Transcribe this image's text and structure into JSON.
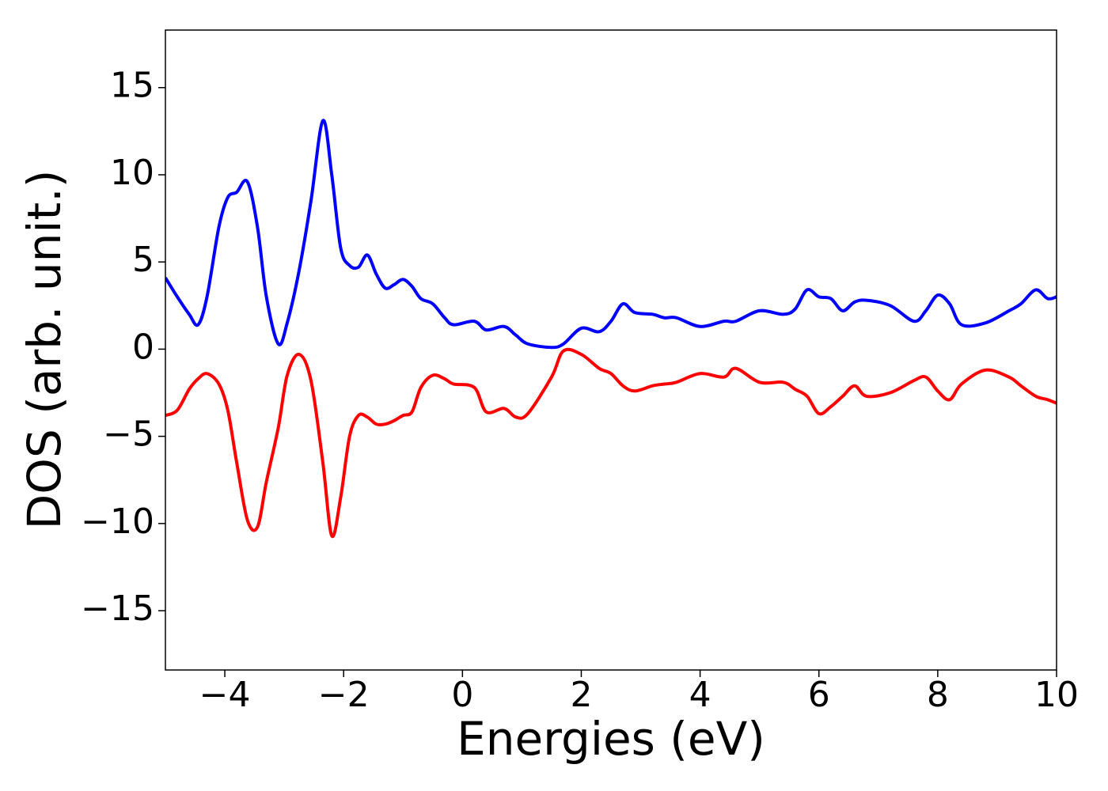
{
  "chart_data": {
    "type": "line",
    "xlabel": "Energies (eV)",
    "ylabel": "DOS (arb. unit.)",
    "x": [
      -5,
      -4.8,
      -4.6,
      -4.45,
      -4.3,
      -4.1,
      -3.95,
      -3.8,
      -3.62,
      -3.45,
      -3.3,
      -3.1,
      -2.95,
      -2.75,
      -2.55,
      -2.35,
      -2.2,
      -2.05,
      -1.9,
      -1.75,
      -1.6,
      -1.45,
      -1.3,
      -1.15,
      -1.0,
      -0.85,
      -0.7,
      -0.5,
      -0.3,
      -0.15,
      0.2,
      0.4,
      0.7,
      0.9,
      1.1,
      1.5,
      1.7,
      2.0,
      2.3,
      2.5,
      2.7,
      2.9,
      3.2,
      3.4,
      3.6,
      4.0,
      4.4,
      4.6,
      5.0,
      5.4,
      5.6,
      5.8,
      6.0,
      6.2,
      6.4,
      6.6,
      6.8,
      7.2,
      7.6,
      7.8,
      8.0,
      8.2,
      8.4,
      8.8,
      9.2,
      9.4,
      9.65,
      9.85,
      10
    ],
    "series": [
      {
        "color": "#0000ff",
        "values": [
          4.1,
          3.0,
          2.0,
          1.4,
          3.0,
          7.0,
          8.7,
          9.0,
          9.6,
          7.0,
          3.0,
          0.3,
          1.5,
          4.5,
          8.5,
          13.1,
          10.0,
          5.8,
          4.8,
          4.7,
          5.4,
          4.3,
          3.5,
          3.7,
          4.0,
          3.6,
          2.9,
          2.6,
          1.8,
          1.4,
          1.6,
          1.1,
          1.3,
          0.8,
          0.3,
          0.1,
          0.3,
          1.2,
          1.0,
          1.6,
          2.6,
          2.1,
          2.0,
          1.8,
          1.8,
          1.3,
          1.6,
          1.6,
          2.2,
          2.0,
          2.3,
          3.4,
          3.0,
          2.9,
          2.2,
          2.7,
          2.8,
          2.5,
          1.6,
          2.2,
          3.1,
          2.6,
          1.4,
          1.5,
          2.2,
          2.6,
          3.4,
          2.9,
          3.0
        ]
      },
      {
        "color": "#ff0000",
        "values": [
          -3.8,
          -3.5,
          -2.3,
          -1.7,
          -1.4,
          -2.0,
          -3.5,
          -6.5,
          -9.8,
          -10.2,
          -7.6,
          -4.5,
          -1.5,
          -0.3,
          -1.8,
          -6.5,
          -10.7,
          -8.5,
          -5.0,
          -3.8,
          -3.9,
          -4.3,
          -4.3,
          -4.1,
          -3.8,
          -3.6,
          -2.2,
          -1.5,
          -1.7,
          -2.0,
          -2.2,
          -3.6,
          -3.4,
          -3.9,
          -3.7,
          -1.6,
          -0.1,
          -0.3,
          -1.1,
          -1.4,
          -2.1,
          -2.4,
          -2.1,
          -2.0,
          -1.9,
          -1.4,
          -1.6,
          -1.1,
          -1.9,
          -1.9,
          -2.3,
          -2.7,
          -3.7,
          -3.3,
          -2.7,
          -2.1,
          -2.7,
          -2.5,
          -1.8,
          -1.6,
          -2.4,
          -2.9,
          -2.0,
          -1.2,
          -1.6,
          -2.1,
          -2.7,
          -2.9,
          -3.1
        ]
      }
    ],
    "xlim": [
      -5,
      10
    ],
    "xticks": [
      {
        "value": -4,
        "label": "−4"
      },
      {
        "value": -2,
        "label": "−2"
      },
      0,
      2,
      4,
      6,
      8,
      10
    ],
    "ylim": [
      -18.4,
      18.3
    ],
    "yticks": [
      {
        "value": -15,
        "label": "−15"
      },
      {
        "value": -10,
        "label": "−10"
      },
      {
        "value": -5,
        "label": "−5"
      },
      0,
      5,
      10,
      15
    ],
    "grid": false
  }
}
